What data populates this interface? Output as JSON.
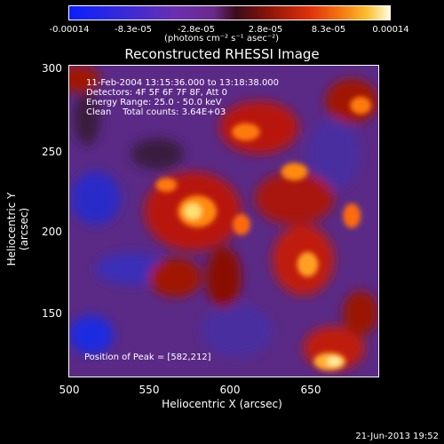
{
  "colorbar": {
    "ticks": [
      "-0.00014",
      "-8.3e-05",
      "-2.8e-05",
      "2.8e-05",
      "8.3e-05",
      "0.00014"
    ],
    "units": "(photons cm⁻² s⁻¹ asec⁻²)"
  },
  "title": "Reconstructed RHESSI Image",
  "info": {
    "time": "11-Feb-2004 13:15:36.000 to 13:18:38.000",
    "detectors": "Detectors: 4F 5F 6F 7F 8F, Att 0",
    "energy": "Energy Range: 25.0 - 50.0 keV",
    "clean": "Clean    Total counts: 3.64E+03"
  },
  "peak": "Position of Peak = [582,212]",
  "axes": {
    "xlabel": "Heliocentric X (arcsec)",
    "ylabel": "Heliocentric Y (arcsec)",
    "xticks": [
      "500",
      "550",
      "600",
      "650"
    ],
    "yticks": [
      "300",
      "250",
      "200",
      "150"
    ]
  },
  "footer_date": "21-Jun-2013 19:52"
}
